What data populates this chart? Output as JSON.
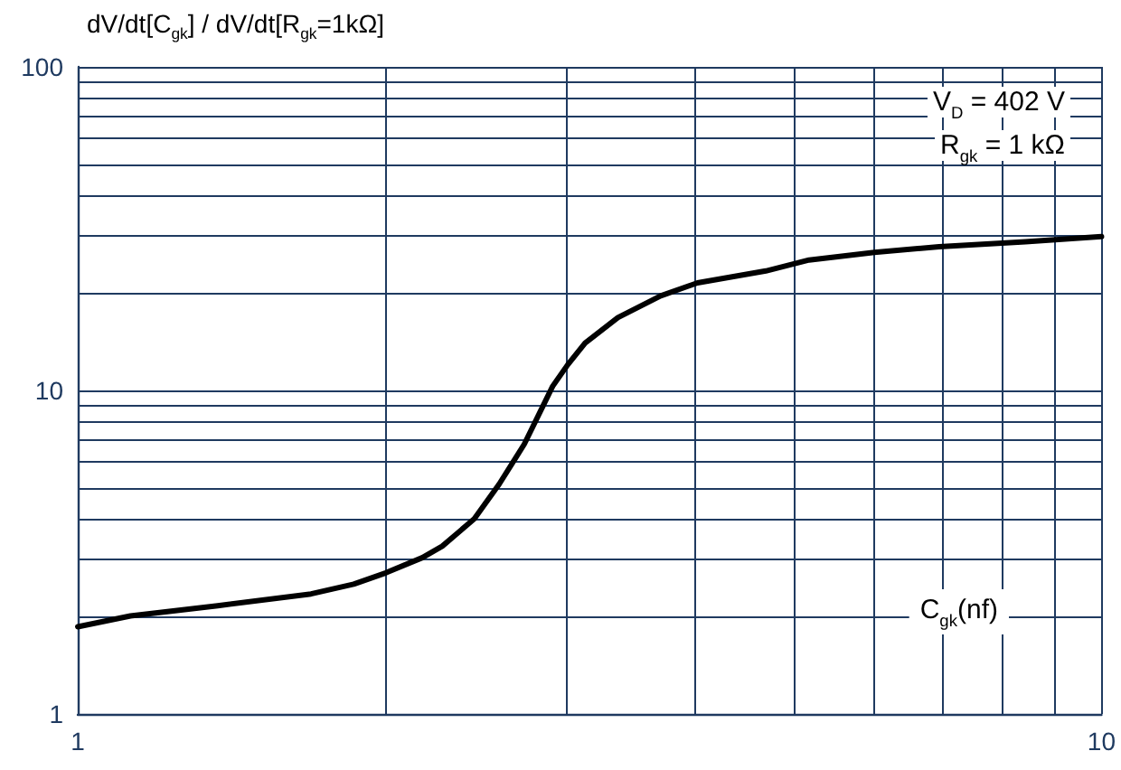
{
  "chart_data": {
    "type": "line",
    "ylabel": "dV/dt[C$_{gk}$] / dV/dt[R$_{gk}$=1kΩ]",
    "xlabel": "C$_{gk}$(nf)",
    "annotations": [
      "V$_{D}$ = 402 V",
      "R$_{gk}$ = 1 kΩ"
    ],
    "log": "xy",
    "grid": true,
    "marker": "none",
    "line_style": "solid",
    "xlim": [
      1,
      10
    ],
    "ylim": [
      1,
      100
    ],
    "xticks": [
      1,
      {
        "value": 2,
        "label": null
      },
      {
        "value": 3,
        "label": null
      },
      {
        "value": 4,
        "label": null
      },
      {
        "value": 5,
        "label": null
      },
      {
        "value": 6,
        "label": null
      },
      {
        "value": 7,
        "label": null
      },
      {
        "value": 8,
        "label": null
      },
      {
        "value": 9,
        "label": null
      },
      10
    ],
    "yticks": [
      1,
      {
        "value": 2,
        "label": null
      },
      {
        "value": 3,
        "label": null
      },
      {
        "value": 4,
        "label": null
      },
      {
        "value": 5,
        "label": null
      },
      {
        "value": 6,
        "label": null
      },
      {
        "value": 7,
        "label": null
      },
      {
        "value": 8,
        "label": null
      },
      {
        "value": 9,
        "label": null
      },
      10,
      {
        "value": 20,
        "label": null
      },
      {
        "value": 30,
        "label": null
      },
      {
        "value": 40,
        "label": null
      },
      {
        "value": 50,
        "label": null
      },
      {
        "value": 60,
        "label": null
      },
      {
        "value": 70,
        "label": null
      },
      {
        "value": 80,
        "label": null
      },
      {
        "value": 90,
        "label": null
      },
      100
    ],
    "series": [
      {
        "color": "#000000",
        "x": [
          1,
          1.126,
          1.37,
          1.69,
          1.86,
          2.0,
          2.17,
          2.27,
          2.44,
          2.58,
          2.73,
          2.91,
          3.01,
          3.13,
          3.37,
          3.71,
          4.03,
          4.7,
          5.18,
          6.0,
          6.94,
          8.43,
          10
        ],
        "values": [
          1.86,
          2.01,
          2.16,
          2.35,
          2.52,
          2.73,
          3.04,
          3.3,
          4.01,
          5.13,
          6.82,
          10.3,
          12.0,
          14.0,
          16.8,
          19.6,
          21.5,
          23.4,
          25.3,
          26.7,
          27.8,
          28.8,
          29.9
        ]
      }
    ]
  }
}
